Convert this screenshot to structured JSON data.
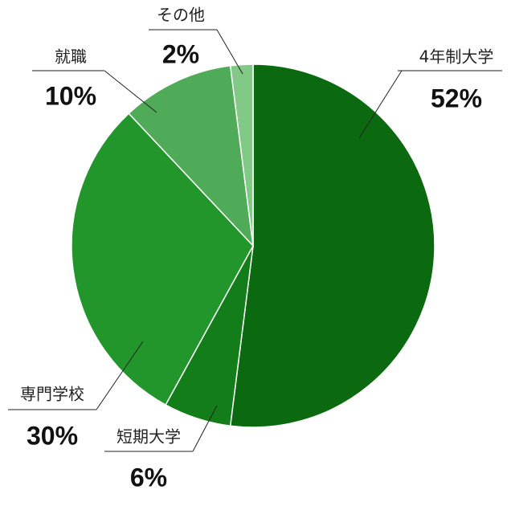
{
  "chart_data": {
    "type": "pie",
    "categories": [
      "4年制大学",
      "短期大学",
      "専門学校",
      "就職",
      "その他"
    ],
    "values": [
      52,
      6,
      30,
      10,
      2
    ],
    "value_labels": [
      "52%",
      "6%",
      "30%",
      "10%",
      "2%"
    ],
    "colors": [
      "#0b6a10",
      "#137d1a",
      "#22962b",
      "#4fab58",
      "#82c886"
    ]
  }
}
